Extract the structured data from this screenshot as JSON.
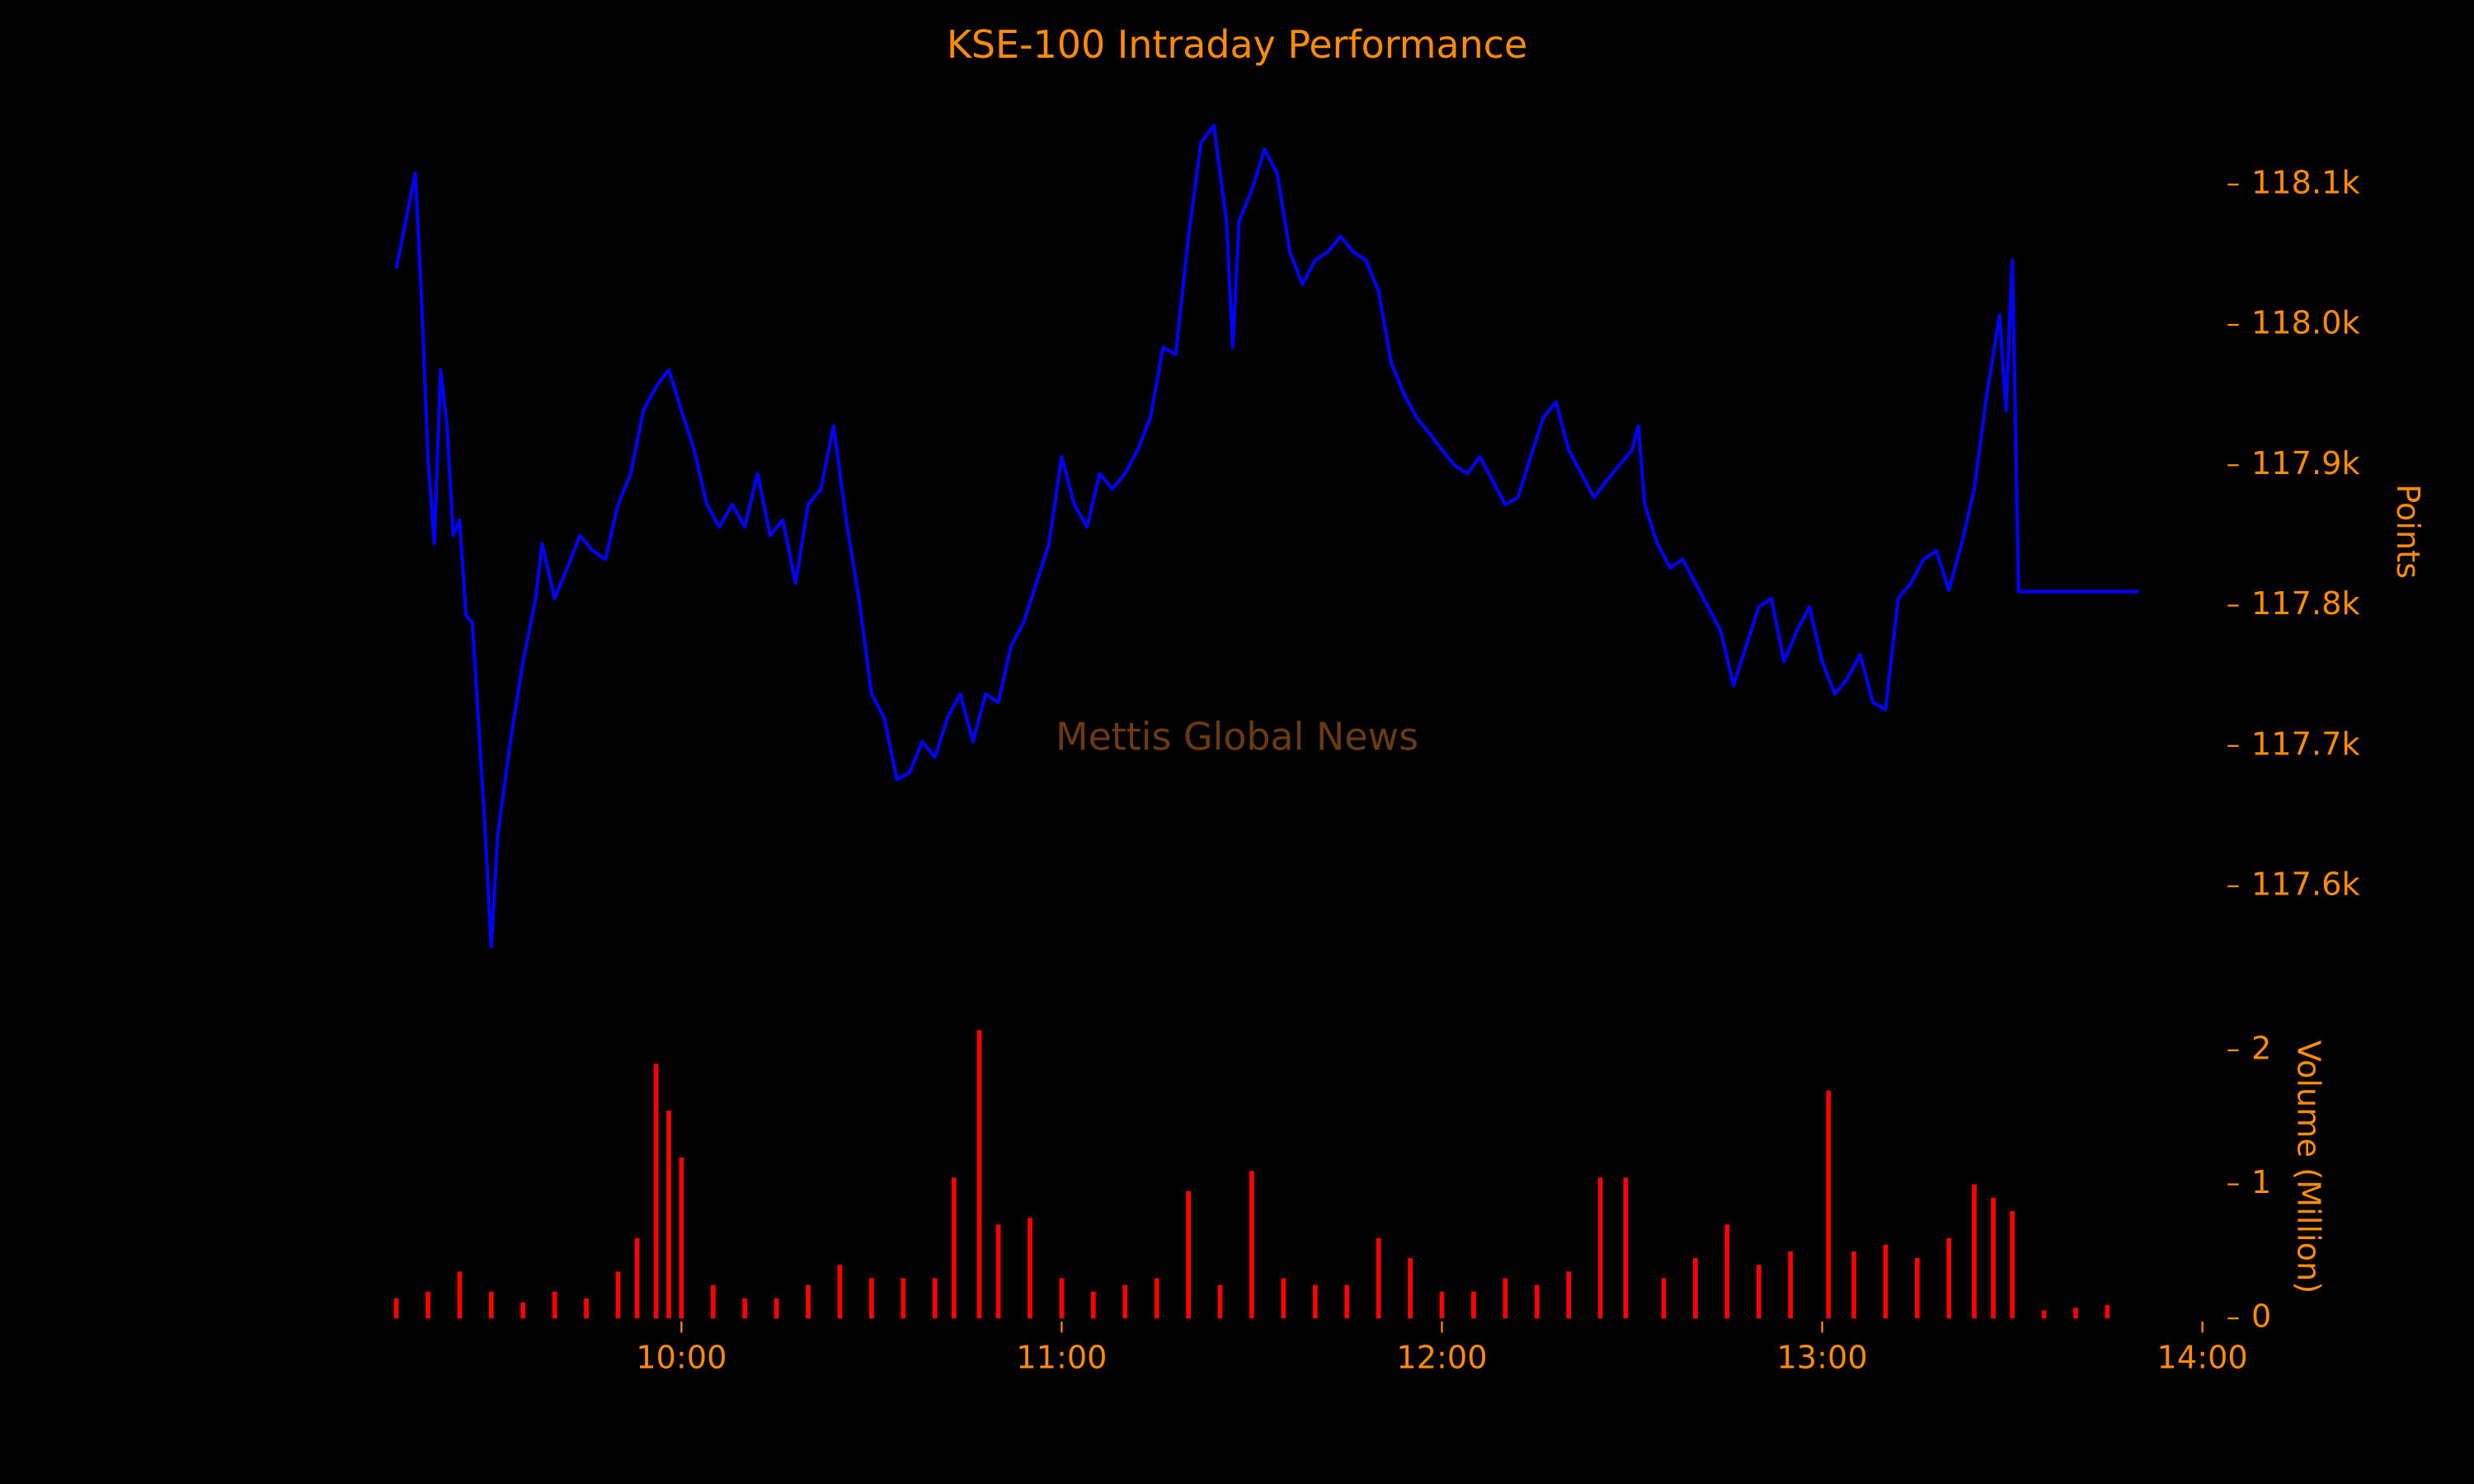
{
  "chart_data": [
    {
      "type": "line",
      "title": "KSE-100 Intraday Performance",
      "ylabel": "Points",
      "watermark": "Mettis Global News",
      "color": "#0000ff",
      "xlim": [
        "09:13",
        "14:00"
      ],
      "ylim": [
        117550,
        118150
      ],
      "yticks": [
        {
          "value": 117600,
          "label": "117.6k"
        },
        {
          "value": 117700,
          "label": "117.7k"
        },
        {
          "value": 117800,
          "label": "117.8k"
        },
        {
          "value": 117900,
          "label": "117.9k"
        },
        {
          "value": 118000,
          "label": "118.0k"
        },
        {
          "value": 118100,
          "label": "118.1k"
        }
      ],
      "x": [
        "09:15",
        "09:18",
        "09:19",
        "09:20",
        "09:21",
        "09:22",
        "09:23",
        "09:24",
        "09:25",
        "09:26",
        "09:27",
        "09:28",
        "09:29",
        "09:30",
        "09:31",
        "09:33",
        "09:35",
        "09:37",
        "09:38",
        "09:40",
        "09:42",
        "09:44",
        "09:46",
        "09:48",
        "09:50",
        "09:52",
        "09:54",
        "09:56",
        "09:58",
        "10:00",
        "10:02",
        "10:04",
        "10:06",
        "10:08",
        "10:10",
        "10:12",
        "10:14",
        "10:16",
        "10:18",
        "10:20",
        "10:22",
        "10:24",
        "10:26",
        "10:28",
        "10:30",
        "10:32",
        "10:34",
        "10:36",
        "10:38",
        "10:40",
        "10:42",
        "10:44",
        "10:46",
        "10:48",
        "10:50",
        "10:52",
        "10:54",
        "10:56",
        "10:58",
        "11:00",
        "11:02",
        "11:04",
        "11:06",
        "11:08",
        "11:10",
        "11:12",
        "11:14",
        "11:16",
        "11:18",
        "11:20",
        "11:22",
        "11:24",
        "11:26",
        "11:27",
        "11:28",
        "11:30",
        "11:32",
        "11:34",
        "11:36",
        "11:38",
        "11:40",
        "11:42",
        "11:44",
        "11:46",
        "11:48",
        "11:50",
        "11:52",
        "11:54",
        "11:56",
        "11:58",
        "12:00",
        "12:02",
        "12:04",
        "12:06",
        "12:08",
        "12:10",
        "12:12",
        "12:14",
        "12:16",
        "12:18",
        "12:20",
        "12:22",
        "12:24",
        "12:26",
        "12:28",
        "12:30",
        "12:31",
        "12:32",
        "12:34",
        "12:36",
        "12:38",
        "12:40",
        "12:42",
        "12:44",
        "12:46",
        "12:48",
        "12:50",
        "12:52",
        "12:54",
        "12:56",
        "12:58",
        "13:00",
        "13:02",
        "13:04",
        "13:06",
        "13:08",
        "13:10",
        "13:12",
        "13:14",
        "13:16",
        "13:18",
        "13:20",
        "13:22",
        "13:24",
        "13:26",
        "13:28",
        "13:29",
        "13:30",
        "13:31",
        "13:50"
      ],
      "values": [
        118040,
        118108,
        118018,
        117906,
        117844,
        117968,
        117928,
        117850,
        117861,
        117793,
        117788,
        117715,
        117642,
        117557,
        117636,
        117703,
        117760,
        117805,
        117844,
        117805,
        117827,
        117850,
        117839,
        117833,
        117872,
        117894,
        117939,
        117956,
        117968,
        117939,
        117911,
        117872,
        117856,
        117872,
        117856,
        117894,
        117850,
        117861,
        117816,
        117872,
        117883,
        117928,
        117861,
        117805,
        117737,
        117720,
        117676,
        117681,
        117703,
        117692,
        117720,
        117737,
        117703,
        117737,
        117731,
        117771,
        117788,
        117816,
        117844,
        117906,
        117872,
        117856,
        117894,
        117883,
        117894,
        117911,
        117934,
        117984,
        117979,
        118063,
        118130,
        118142,
        118074,
        117984,
        118074,
        118096,
        118125,
        118108,
        118052,
        118029,
        118046,
        118052,
        118063,
        118052,
        118046,
        118024,
        117973,
        117951,
        117934,
        117923,
        117911,
        117900,
        117894,
        117906,
        117889,
        117872,
        117877,
        117906,
        117934,
        117945,
        117911,
        117894,
        117877,
        117889,
        117900,
        117911,
        117928,
        117872,
        117844,
        117827,
        117833,
        117816,
        117799,
        117782,
        117743,
        117771,
        117799,
        117805,
        117760,
        117782,
        117799,
        117760,
        117737,
        117748,
        117765,
        117731,
        117726,
        117805,
        117816,
        117833,
        117839,
        117811,
        117844,
        117883,
        117951,
        118007,
        117939,
        118046,
        117810,
        117810
      ]
    },
    {
      "type": "bar",
      "ylabel": "Volume (Million)",
      "color": "#ff0000",
      "xlim": [
        "09:13",
        "14:00"
      ],
      "xticks": [
        "10:00",
        "11:00",
        "12:00",
        "13:00",
        "14:00"
      ],
      "ylim": [
        0,
        2.2
      ],
      "yticks": [
        0,
        1,
        2
      ],
      "x": [
        "09:15",
        "09:20",
        "09:25",
        "09:30",
        "09:35",
        "09:40",
        "09:45",
        "09:50",
        "09:53",
        "09:56",
        "09:58",
        "10:00",
        "10:05",
        "10:10",
        "10:15",
        "10:20",
        "10:25",
        "10:30",
        "10:35",
        "10:40",
        "10:43",
        "10:47",
        "10:50",
        "10:55",
        "11:00",
        "11:05",
        "11:10",
        "11:15",
        "11:20",
        "11:25",
        "11:30",
        "11:35",
        "11:40",
        "11:45",
        "11:50",
        "11:55",
        "12:00",
        "12:05",
        "12:10",
        "12:15",
        "12:20",
        "12:25",
        "12:29",
        "12:35",
        "12:40",
        "12:45",
        "12:50",
        "12:55",
        "13:01",
        "13:05",
        "13:10",
        "13:15",
        "13:20",
        "13:24",
        "13:27",
        "13:30",
        "13:35",
        "13:40",
        "13:45"
      ],
      "values": [
        0.15,
        0.2,
        0.35,
        0.2,
        0.12,
        0.2,
        0.15,
        0.35,
        0.6,
        1.9,
        1.55,
        1.2,
        0.25,
        0.15,
        0.15,
        0.25,
        0.4,
        0.3,
        0.3,
        0.3,
        1.05,
        2.15,
        0.7,
        0.75,
        0.3,
        0.2,
        0.25,
        0.3,
        0.95,
        0.25,
        1.1,
        0.3,
        0.25,
        0.25,
        0.6,
        0.45,
        0.2,
        0.2,
        0.3,
        0.25,
        0.35,
        1.05,
        1.05,
        0.3,
        0.45,
        0.7,
        0.4,
        0.5,
        1.7,
        0.5,
        0.55,
        0.45,
        0.6,
        1.0,
        0.9,
        0.8,
        0.06,
        0.08,
        0.1
      ]
    }
  ]
}
